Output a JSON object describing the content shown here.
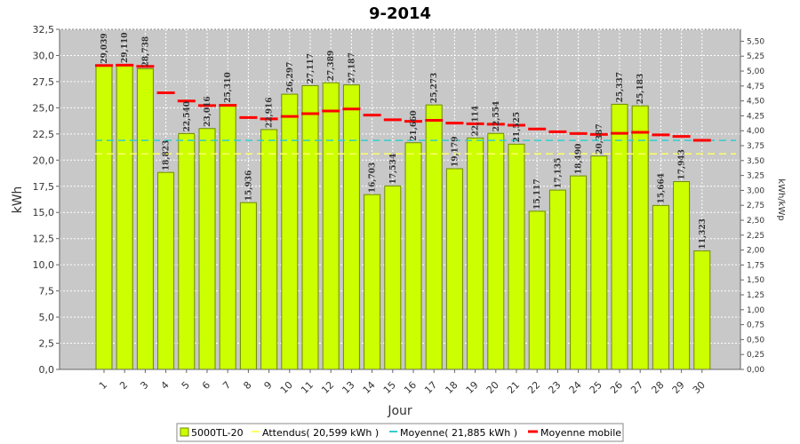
{
  "chart_data": {
    "type": "bar",
    "title": "9-2014",
    "xlabel": "Jour",
    "ylabel": "kWh",
    "ylabel_right": "kWh/kWp",
    "ylim": [
      0,
      32.5
    ],
    "ylim_right": [
      0,
      5.7
    ],
    "yticks": [
      "0,0",
      "2,5",
      "5,0",
      "7,5",
      "10,0",
      "12,5",
      "15,0",
      "17,5",
      "20,0",
      "22,5",
      "25,0",
      "27,5",
      "30,0",
      "32,5"
    ],
    "yticks_right": [
      "0,00",
      "0,25",
      "0,50",
      "0,75",
      "1,00",
      "1,25",
      "1,50",
      "1,75",
      "2,00",
      "2,25",
      "2,50",
      "2,75",
      "3,00",
      "3,25",
      "3,50",
      "3,75",
      "4,00",
      "4,25",
      "4,50",
      "4,75",
      "5,00",
      "5,25",
      "5,50"
    ],
    "categories": [
      "1",
      "2",
      "3",
      "4",
      "5",
      "6",
      "7",
      "8",
      "9",
      "10",
      "11",
      "12",
      "13",
      "14",
      "15",
      "16",
      "17",
      "18",
      "19",
      "20",
      "21",
      "22",
      "23",
      "24",
      "25",
      "26",
      "27",
      "28",
      "29",
      "30"
    ],
    "series": [
      {
        "name": "5000TL-20",
        "kind": "bar",
        "color": "#ccff00",
        "values": [
          29.039,
          29.11,
          28.738,
          18.823,
          22.54,
          23.016,
          25.31,
          15.936,
          22.916,
          26.297,
          27.117,
          27.389,
          27.187,
          16.703,
          17.534,
          21.66,
          25.273,
          19.179,
          22.114,
          22.554,
          21.525,
          15.117,
          17.135,
          18.49,
          20.387,
          25.337,
          25.183,
          15.664,
          17.943,
          11.323
        ],
        "labels": [
          "29,039",
          "29,110",
          "28,738",
          "18,823",
          "22,540",
          "23,016",
          "25,310",
          "15,936",
          "22,916",
          "26,297",
          "27,117",
          "27,389",
          "27,187",
          "16,703",
          "17,534",
          "21,660",
          "25,273",
          "19,179",
          "22,114",
          "22,554",
          "21,525",
          "15,117",
          "17,135",
          "18,490",
          "20,387",
          "25,337",
          "25,183",
          "15,664",
          "17,943",
          "11,323"
        ]
      },
      {
        "name": "Attendus( 20,599 kWh )",
        "kind": "dashed-line",
        "color": "#ffff66",
        "value": 20.599
      },
      {
        "name": "Moyenne( 21,885 kWh )",
        "kind": "dashed-line",
        "color": "#33cccc",
        "value": 21.885
      },
      {
        "name": "Moyenne mobile",
        "kind": "markers",
        "color": "#ff0000",
        "values": [
          29.04,
          29.07,
          28.96,
          26.43,
          25.65,
          25.21,
          25.23,
          24.07,
          23.94,
          24.17,
          24.44,
          24.69,
          24.88,
          24.3,
          23.85,
          23.71,
          23.8,
          23.54,
          23.47,
          23.43,
          23.34,
          22.97,
          22.71,
          22.54,
          22.45,
          22.56,
          22.66,
          22.41,
          22.26,
          21.89
        ]
      }
    ],
    "grid": true,
    "legend_position": "bottom"
  }
}
